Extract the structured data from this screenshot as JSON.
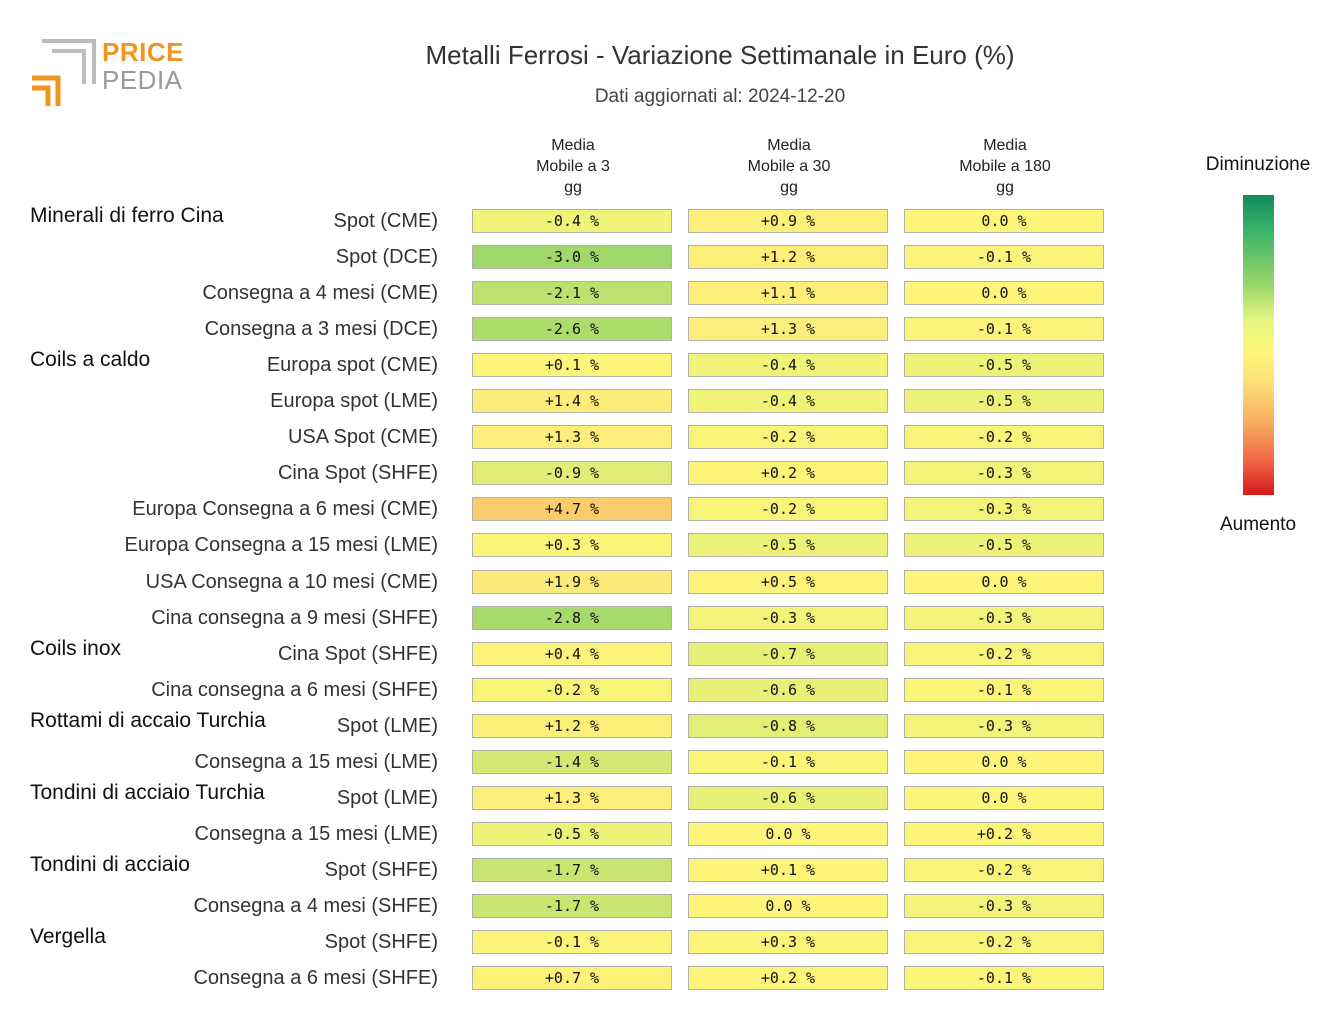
{
  "logo": {
    "line1": "PRICE",
    "line2": "PEDIA"
  },
  "title": "Metalli Ferrosi - Variazione Settimanale in Euro (%)",
  "subtitle": "Dati aggiornati al: 2024-12-20",
  "legend": {
    "top": "Diminuzione",
    "bottom": "Aumento"
  },
  "chart_data": {
    "type": "heatmap",
    "title": "Metalli Ferrosi - Variazione Settimanale in Euro (%)",
    "subtitle": "Dati aggiornati al: 2024-12-20",
    "columns": [
      [
        "Media",
        "Mobile a 3",
        "gg"
      ],
      [
        "Media",
        "Mobile a 30",
        "gg"
      ],
      [
        "Media",
        "Mobile a 180",
        "gg"
      ]
    ],
    "rows": [
      {
        "group": "Minerali di ferro Cina",
        "label": "Spot (CME)",
        "values": [
          -0.4,
          0.9,
          0.0
        ],
        "text": [
          "-0.4 %",
          "+0.9 %",
          "0.0 %"
        ]
      },
      {
        "group": "",
        "label": "Spot (DCE)",
        "values": [
          -3.0,
          1.2,
          -0.1
        ],
        "text": [
          "-3.0 %",
          "+1.2 %",
          "-0.1 %"
        ]
      },
      {
        "group": "",
        "label": "Consegna a 4 mesi (CME)",
        "values": [
          -2.1,
          1.1,
          0.0
        ],
        "text": [
          "-2.1 %",
          "+1.1 %",
          "0.0 %"
        ]
      },
      {
        "group": "",
        "label": "Consegna a 3 mesi (DCE)",
        "values": [
          -2.6,
          1.3,
          -0.1
        ],
        "text": [
          "-2.6 %",
          "+1.3 %",
          "-0.1 %"
        ]
      },
      {
        "group": "Coils a caldo",
        "label": "Europa spot (CME)",
        "values": [
          0.1,
          -0.4,
          -0.5
        ],
        "text": [
          "+0.1 %",
          "-0.4 %",
          "-0.5 %"
        ]
      },
      {
        "group": "",
        "label": "Europa spot (LME)",
        "values": [
          1.4,
          -0.4,
          -0.5
        ],
        "text": [
          "+1.4 %",
          "-0.4 %",
          "-0.5 %"
        ]
      },
      {
        "group": "",
        "label": "USA Spot (CME)",
        "values": [
          1.3,
          -0.2,
          -0.2
        ],
        "text": [
          "+1.3 %",
          "-0.2 %",
          "-0.2 %"
        ]
      },
      {
        "group": "",
        "label": "Cina Spot (SHFE)",
        "values": [
          -0.9,
          0.2,
          -0.3
        ],
        "text": [
          "-0.9 %",
          "+0.2 %",
          "-0.3 %"
        ]
      },
      {
        "group": "",
        "label": "Europa Consegna a 6 mesi (CME)",
        "values": [
          4.7,
          -0.2,
          -0.3
        ],
        "text": [
          "+4.7 %",
          "-0.2 %",
          "-0.3 %"
        ]
      },
      {
        "group": "",
        "label": "Europa Consegna a 15 mesi (LME)",
        "values": [
          0.3,
          -0.5,
          -0.5
        ],
        "text": [
          "+0.3 %",
          "-0.5 %",
          "-0.5 %"
        ]
      },
      {
        "group": "",
        "label": "USA Consegna a 10 mesi (CME)",
        "values": [
          1.9,
          0.5,
          0.0
        ],
        "text": [
          "+1.9 %",
          "+0.5 %",
          "0.0 %"
        ]
      },
      {
        "group": "",
        "label": "Cina consegna a 9 mesi (SHFE)",
        "values": [
          -2.8,
          -0.3,
          -0.3
        ],
        "text": [
          "-2.8 %",
          "-0.3 %",
          "-0.3 %"
        ]
      },
      {
        "group": "Coils inox",
        "label": "Cina Spot (SHFE)",
        "values": [
          0.4,
          -0.7,
          -0.2
        ],
        "text": [
          "+0.4 %",
          "-0.7 %",
          "-0.2 %"
        ]
      },
      {
        "group": "",
        "label": "Cina consegna a 6 mesi (SHFE)",
        "values": [
          -0.2,
          -0.6,
          -0.1
        ],
        "text": [
          "-0.2 %",
          "-0.6 %",
          "-0.1 %"
        ]
      },
      {
        "group": "Rottami di accaio Turchia",
        "label": "Spot (LME)",
        "values": [
          1.2,
          -0.8,
          -0.3
        ],
        "text": [
          "+1.2 %",
          "-0.8 %",
          "-0.3 %"
        ]
      },
      {
        "group": "",
        "label": "Consegna a 15 mesi (LME)",
        "values": [
          -1.4,
          -0.1,
          0.0
        ],
        "text": [
          "-1.4 %",
          "-0.1 %",
          "0.0 %"
        ]
      },
      {
        "group": "Tondini di acciaio Turchia",
        "label": "Spot (LME)",
        "values": [
          1.3,
          -0.6,
          0.0
        ],
        "text": [
          "+1.3 %",
          "-0.6 %",
          "0.0 %"
        ]
      },
      {
        "group": "",
        "label": "Consegna a 15 mesi (LME)",
        "values": [
          -0.5,
          0.0,
          0.2
        ],
        "text": [
          "-0.5 %",
          "0.0 %",
          "+0.2 %"
        ]
      },
      {
        "group": "Tondini di acciaio",
        "label": "Spot (SHFE)",
        "values": [
          -1.7,
          0.1,
          -0.2
        ],
        "text": [
          "-1.7 %",
          "+0.1 %",
          "-0.2 %"
        ]
      },
      {
        "group": "",
        "label": "Consegna a 4 mesi (SHFE)",
        "values": [
          -1.7,
          0.0,
          -0.3
        ],
        "text": [
          "-1.7 %",
          "0.0 %",
          "-0.3 %"
        ]
      },
      {
        "group": "Vergella",
        "label": "Spot (SHFE)",
        "values": [
          -0.1,
          0.3,
          -0.2
        ],
        "text": [
          "-0.1 %",
          "+0.3 %",
          "-0.2 %"
        ]
      },
      {
        "group": "",
        "label": "Consegna a 6 mesi (SHFE)",
        "values": [
          0.7,
          0.2,
          -0.1
        ],
        "text": [
          "+0.7 %",
          "+0.2 %",
          "-0.1 %"
        ]
      }
    ],
    "color_scale": {
      "low_label": "Diminuzione",
      "high_label": "Aumento",
      "colors": {
        "strong_decrease": "#138a5a",
        "decrease": "#9ad66a",
        "neutral": "#fdf67a",
        "increase": "#fde17a",
        "strong_increase": "#d7191c"
      }
    }
  }
}
